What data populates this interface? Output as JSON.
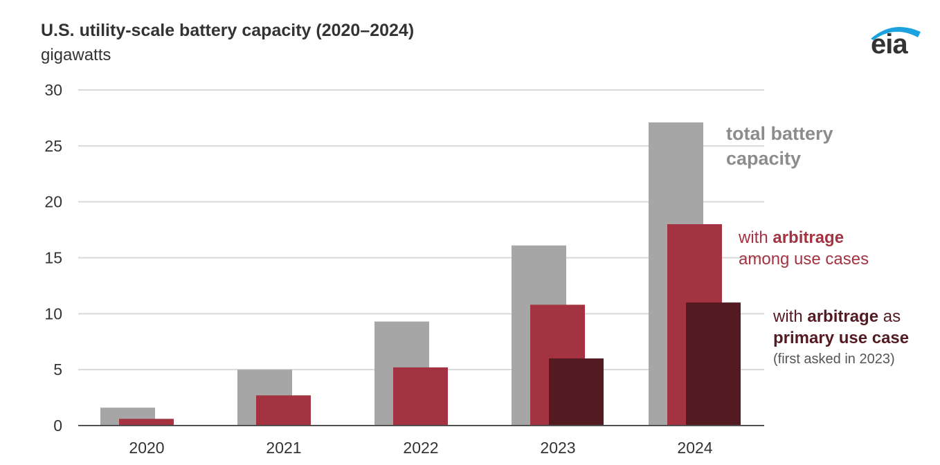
{
  "header": {
    "title": "U.S. utility-scale battery capacity (2020–2024)",
    "subtitle": "gigawatts",
    "logo": "eia"
  },
  "colors": {
    "total": "#a6a6a6",
    "arbitrage": "#a33341",
    "primary": "#541a21",
    "grid": "#d9d9d9",
    "axis": "#505050"
  },
  "annotations": {
    "total": [
      "total battery",
      "capacity"
    ],
    "arbitrage": {
      "pre": "with ",
      "bold": "arbitrage",
      "line2": "among use cases"
    },
    "primary": {
      "pre": "with ",
      "bold": "arbitrage",
      "post": " as",
      "line2": "primary use case",
      "note": "(first asked in 2023)"
    }
  },
  "chart_data": {
    "type": "bar",
    "title": "U.S. utility-scale battery capacity (2020–2024)",
    "ylabel": "gigawatts",
    "categories": [
      "2020",
      "2021",
      "2022",
      "2023",
      "2024"
    ],
    "ylim": [
      0,
      30
    ],
    "yticks": [
      0,
      5,
      10,
      15,
      20,
      25,
      30
    ],
    "grid": true,
    "series": [
      {
        "name": "total battery capacity",
        "values": [
          1.6,
          5.0,
          9.3,
          16.1,
          27.1
        ]
      },
      {
        "name": "with arbitrage among use cases",
        "values": [
          0.6,
          2.7,
          5.2,
          10.8,
          18.0
        ]
      },
      {
        "name": "with arbitrage as primary use case",
        "values": [
          null,
          null,
          null,
          6.0,
          11.0
        ]
      }
    ]
  }
}
